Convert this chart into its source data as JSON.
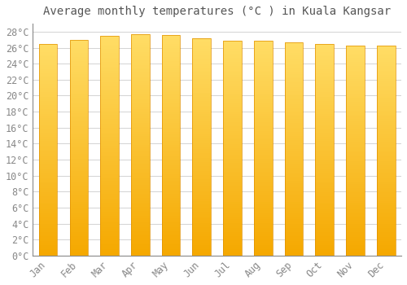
{
  "title": "Average monthly temperatures (°C ) in Kuala Kangsar",
  "months": [
    "Jan",
    "Feb",
    "Mar",
    "Apr",
    "May",
    "Jun",
    "Jul",
    "Aug",
    "Sep",
    "Oct",
    "Nov",
    "Dec"
  ],
  "values": [
    26.5,
    27.0,
    27.5,
    27.7,
    27.6,
    27.2,
    26.9,
    26.9,
    26.7,
    26.5,
    26.3,
    26.3
  ],
  "bar_color_bottom": "#F5A800",
  "bar_color_top": "#FFDD66",
  "bar_color_edge": "#E09000",
  "background_color": "#FFFFFF",
  "grid_color": "#CCCCCC",
  "title_color": "#555555",
  "tick_color": "#888888",
  "ylim": [
    0,
    29
  ],
  "ytick_step": 2,
  "title_fontsize": 10,
  "tick_fontsize": 8.5,
  "font_family": "monospace",
  "bar_width": 0.6
}
